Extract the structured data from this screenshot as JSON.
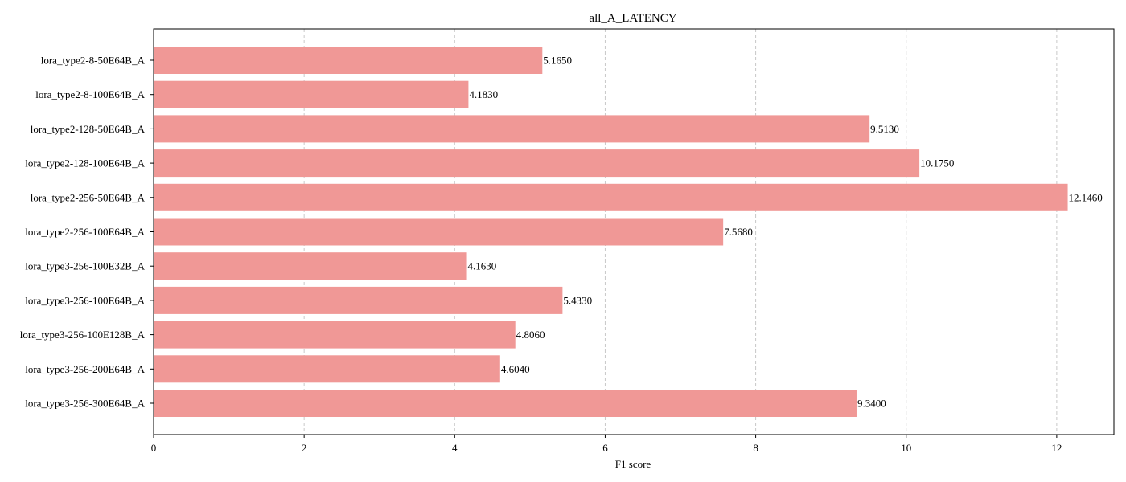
{
  "chart_data": {
    "type": "bar",
    "orientation": "horizontal",
    "title": "all_A_LATENCY",
    "xlabel": "F1 score",
    "ylabel": "",
    "xlim": [
      0,
      12.76
    ],
    "xticks": [
      0,
      2,
      4,
      6,
      8,
      10,
      12
    ],
    "x_tick_labels": [
      "0",
      "2",
      "4",
      "6",
      "8",
      "10",
      "12"
    ],
    "grid": "x-axis dashed",
    "bar_color": "#f09896",
    "categories": [
      "lora_type2-8-50E64B_A",
      "lora_type2-8-100E64B_A",
      "lora_type2-128-50E64B_A",
      "lora_type2-128-100E64B_A",
      "lora_type2-256-50E64B_A",
      "lora_type2-256-100E64B_A",
      "lora_type3-256-100E32B_A",
      "lora_type3-256-100E64B_A",
      "lora_type3-256-100E128B_A",
      "lora_type3-256-200E64B_A",
      "lora_type3-256-300E64B_A"
    ],
    "values": [
      5.165,
      4.183,
      9.513,
      10.175,
      12.146,
      7.568,
      4.163,
      5.433,
      4.806,
      4.604,
      9.34
    ],
    "value_labels": [
      "5.1650",
      "4.1830",
      "9.5130",
      "10.1750",
      "12.1460",
      "7.5680",
      "4.1630",
      "5.4330",
      "4.8060",
      "4.6040",
      "9.3400"
    ]
  }
}
